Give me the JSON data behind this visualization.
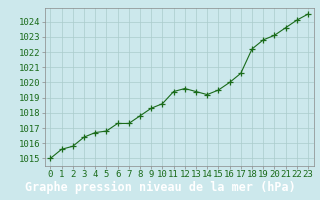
{
  "x": [
    0,
    1,
    2,
    3,
    4,
    5,
    6,
    7,
    8,
    9,
    10,
    11,
    12,
    13,
    14,
    15,
    16,
    17,
    18,
    19,
    20,
    21,
    22,
    23
  ],
  "y": [
    1015.0,
    1015.6,
    1015.8,
    1016.4,
    1016.7,
    1016.8,
    1017.3,
    1017.3,
    1017.8,
    1018.3,
    1018.6,
    1019.4,
    1019.6,
    1019.4,
    1019.2,
    1019.5,
    1020.0,
    1020.6,
    1022.2,
    1022.8,
    1023.1,
    1023.6,
    1024.1,
    1024.5
  ],
  "line_color": "#1a6b1a",
  "marker": "+",
  "marker_size": 4,
  "marker_lw": 0.9,
  "line_width": 0.8,
  "bg_color": "#cce8ec",
  "grid_color": "#aacccc",
  "axis_label_color": "#1a6b1a",
  "ylabel_ticks": [
    1015,
    1016,
    1017,
    1018,
    1019,
    1020,
    1021,
    1022,
    1023,
    1024
  ],
  "xlim": [
    -0.5,
    23.5
  ],
  "ylim": [
    1014.5,
    1024.9
  ],
  "tick_fontsize": 6.5,
  "title_bg": "#1a6b1a",
  "title_fg": "#ffffff",
  "title_text": "Graphe pression niveau de la mer (hPa)",
  "title_fontsize": 8.5,
  "spine_color": "#888888"
}
